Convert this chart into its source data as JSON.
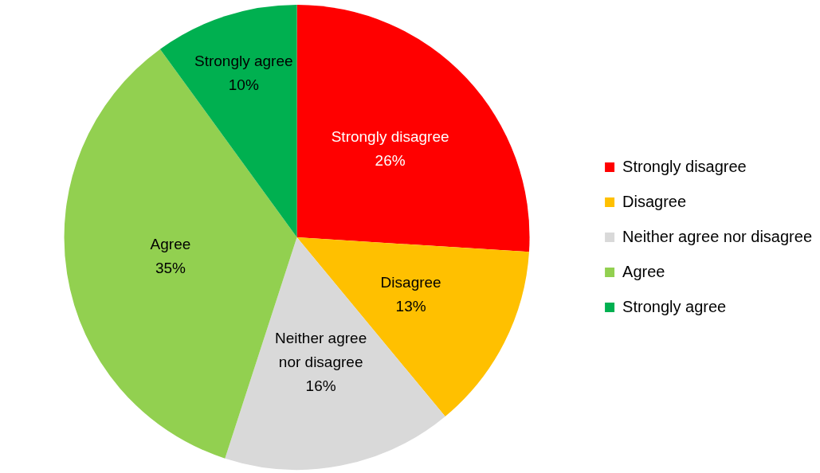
{
  "chart_data": {
    "type": "pie",
    "categories": [
      "Strongly disagree",
      "Disagree",
      "Neither agree nor disagree",
      "Agree",
      "Strongly agree"
    ],
    "values": [
      26,
      13,
      16,
      35,
      10
    ],
    "value_labels": [
      "26%",
      "13%",
      "16%",
      "35%",
      "10%"
    ],
    "colors": [
      "#ff0000",
      "#ffc000",
      "#d9d9d9",
      "#92d050",
      "#00b050"
    ],
    "legend": "right"
  }
}
